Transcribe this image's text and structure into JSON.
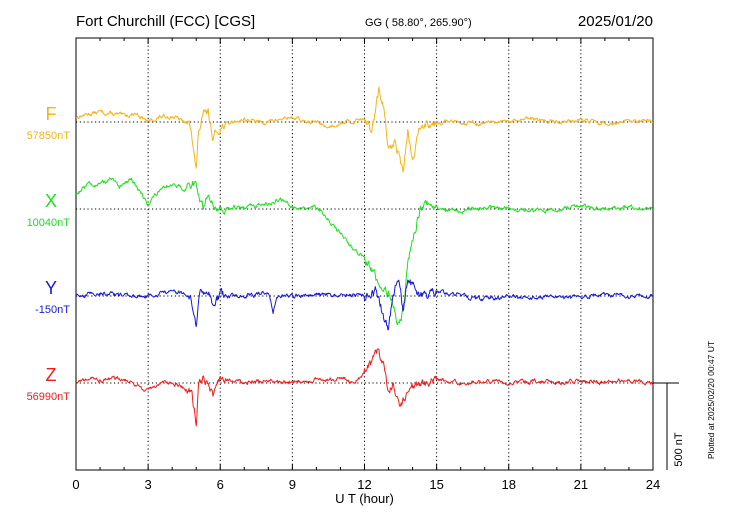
{
  "header": {
    "station": "Fort Churchill (FCC)  [CGS]",
    "coords": "GG ( 58.80°, 265.90°)",
    "date": "2025/01/20"
  },
  "footer": {
    "plotted": "Plotted at 2025/02/20 00:47 UT"
  },
  "chart_data": {
    "type": "line",
    "xlabel": "U T (hour)",
    "xlim": [
      0,
      24
    ],
    "xticks": [
      "0",
      "3",
      "6",
      "9",
      "12",
      "15",
      "18",
      "21",
      "24"
    ],
    "scale_bar": "500 nT",
    "scale_bar_nT": 500,
    "grid": "dotted vertical every 3 hours",
    "series": [
      {
        "name": "F",
        "baseline_label": "57850nT",
        "baseline_nT": 57850,
        "color": "#f5b418",
        "x": [
          0,
          0.5,
          1,
          1.5,
          2,
          2.5,
          3,
          3.5,
          4,
          4.5,
          4.8,
          5,
          5.1,
          5.3,
          5.5,
          5.7,
          6,
          6.5,
          7,
          7.5,
          8,
          8.5,
          9,
          9.5,
          10,
          10.5,
          11,
          11.5,
          12,
          12.3,
          12.6,
          12.8,
          13,
          13.3,
          13.6,
          13.8,
          14,
          14.3,
          14.6,
          15,
          16,
          17,
          18,
          19,
          20,
          21,
          22,
          23,
          24
        ],
        "y": [
          5,
          8,
          10,
          8,
          6,
          9,
          0,
          5,
          6,
          0,
          -5,
          -50,
          -10,
          5,
          10,
          -15,
          -5,
          0,
          3,
          0,
          0,
          3,
          5,
          0,
          0,
          -5,
          0,
          0,
          5,
          -10,
          30,
          15,
          -30,
          -20,
          -50,
          -10,
          -40,
          -5,
          0,
          0,
          0,
          -2,
          0,
          3,
          0,
          2,
          -2,
          0,
          0
        ]
      },
      {
        "name": "X",
        "baseline_label": "10040nT",
        "baseline_nT": 10040,
        "color": "#1ee01e",
        "x": [
          0,
          0.5,
          1,
          1.5,
          1.8,
          2.3,
          3,
          3.5,
          4,
          4.5,
          5,
          5.3,
          5.5,
          5.8,
          6,
          6.5,
          7,
          7.5,
          8,
          8.5,
          9,
          9.5,
          10,
          10.5,
          11,
          11.5,
          12,
          12.5,
          13,
          13.2,
          13.4,
          13.6,
          13.8,
          14,
          14.3,
          14.6,
          15,
          16,
          17,
          18,
          19,
          20,
          21,
          22,
          23,
          24
        ],
        "y": [
          15,
          25,
          25,
          30,
          20,
          30,
          5,
          20,
          25,
          20,
          25,
          0,
          15,
          5,
          0,
          2,
          0,
          3,
          5,
          10,
          3,
          0,
          2,
          -10,
          -25,
          -40,
          -50,
          -70,
          -85,
          -100,
          -115,
          -100,
          -55,
          -30,
          0,
          5,
          0,
          -2,
          2,
          0,
          -2,
          0,
          3,
          0,
          2,
          0
        ]
      },
      {
        "name": "Y",
        "baseline_label": "-150nT",
        "baseline_nT": -150,
        "color": "#1818d8",
        "x": [
          0,
          1,
          2,
          3,
          4,
          4.5,
          4.8,
          5,
          5.1,
          5.3,
          5.5,
          5.7,
          6,
          7,
          8,
          8.2,
          8.4,
          9,
          10,
          11,
          12,
          12.5,
          12.8,
          13,
          13.2,
          13.4,
          13.6,
          13.8,
          14,
          14.3,
          14.6,
          15,
          16,
          17,
          18,
          19,
          20,
          21,
          22,
          23,
          24
        ],
        "y": [
          0,
          3,
          0,
          0,
          5,
          2,
          -5,
          -35,
          0,
          5,
          8,
          -10,
          0,
          0,
          3,
          -15,
          0,
          0,
          2,
          0,
          2,
          5,
          -20,
          -35,
          0,
          20,
          -15,
          15,
          8,
          3,
          0,
          5,
          0,
          -3,
          0,
          -2,
          0,
          -2,
          2,
          0,
          0
        ]
      },
      {
        "name": "Z",
        "baseline_label": "56990nT",
        "baseline_nT": 56990,
        "color": "#ee1c1c",
        "x": [
          0,
          0.5,
          1,
          2,
          3,
          3.5,
          4,
          4.5,
          4.8,
          5,
          5.1,
          5.3,
          5.5,
          5.7,
          6,
          7,
          8,
          9,
          10,
          11,
          11.5,
          12,
          12.3,
          12.6,
          12.8,
          13,
          13.2,
          13.5,
          13.8,
          14,
          14.5,
          15,
          16,
          17,
          18,
          19,
          20,
          21,
          22,
          23,
          24
        ],
        "y": [
          0,
          5,
          3,
          5,
          -8,
          0,
          0,
          -5,
          -10,
          -40,
          0,
          5,
          0,
          -15,
          5,
          0,
          2,
          0,
          3,
          5,
          0,
          10,
          20,
          35,
          15,
          -10,
          0,
          -25,
          -10,
          -5,
          0,
          3,
          0,
          2,
          0,
          2,
          0,
          2,
          0,
          3,
          0
        ]
      }
    ]
  }
}
